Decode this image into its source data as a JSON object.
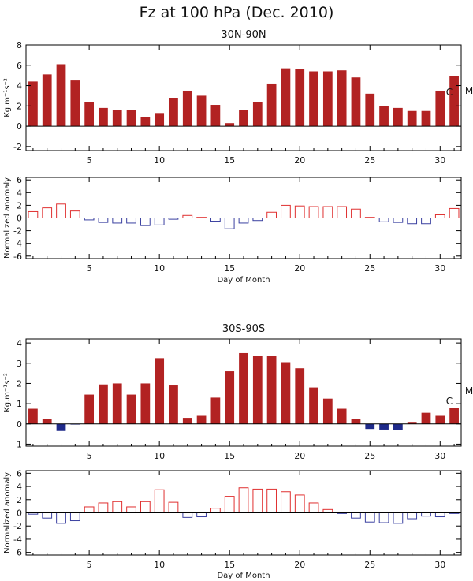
{
  "colors": {
    "positive_fill": "#b22222",
    "negative_fill": "#1f2a8a",
    "anom_positive": "#e03030",
    "anom_negative": "#3a40a0",
    "axis": "#000000"
  },
  "figure": {
    "title": "Fz at 100 hPa (Dec. 2010)",
    "xlabel": "Day of Month"
  },
  "chart_data": [
    {
      "id": "nh_flux",
      "type": "bar",
      "title": "30N-90N",
      "ylabel": "Kg.m⁻¹s⁻²",
      "xlabel": "",
      "xlim": [
        0.5,
        31.5
      ],
      "ylim": [
        -2.4,
        8
      ],
      "xticks": [
        5,
        10,
        15,
        20,
        25,
        30
      ],
      "yticks": [
        -2,
        0,
        2,
        4,
        6,
        8
      ],
      "x": [
        1,
        2,
        3,
        4,
        5,
        6,
        7,
        8,
        9,
        10,
        11,
        12,
        13,
        14,
        15,
        16,
        17,
        18,
        19,
        20,
        21,
        22,
        23,
        24,
        25,
        26,
        27,
        28,
        29,
        30,
        31
      ],
      "values": [
        4.4,
        5.1,
        6.1,
        4.5,
        2.4,
        1.8,
        1.6,
        1.6,
        0.9,
        1.3,
        2.8,
        3.5,
        3.0,
        2.1,
        0.3,
        1.6,
        2.4,
        4.2,
        5.7,
        5.6,
        5.4,
        5.4,
        5.5,
        4.8,
        3.2,
        2.0,
        1.8,
        1.5,
        1.5,
        3.5,
        4.9
      ],
      "annotations": [
        "C",
        "M"
      ]
    },
    {
      "id": "nh_anomaly",
      "type": "bar",
      "title": "",
      "ylabel": "Normalized anomaly",
      "xlabel": "Day of Month",
      "xlim": [
        0.5,
        31.5
      ],
      "ylim": [
        -6.4,
        6.4
      ],
      "xticks": [
        5,
        10,
        15,
        20,
        25,
        30
      ],
      "yticks": [
        -6,
        -4,
        -2,
        0,
        2,
        4,
        6
      ],
      "x": [
        1,
        2,
        3,
        4,
        5,
        6,
        7,
        8,
        9,
        10,
        11,
        12,
        13,
        14,
        15,
        16,
        17,
        18,
        19,
        20,
        21,
        22,
        23,
        24,
        25,
        26,
        27,
        28,
        29,
        30,
        31
      ],
      "values": [
        1.0,
        1.6,
        2.2,
        1.1,
        -0.3,
        -0.7,
        -0.8,
        -0.8,
        -1.2,
        -1.1,
        -0.2,
        0.4,
        0.1,
        -0.5,
        -1.7,
        -0.8,
        -0.4,
        0.9,
        2.0,
        1.9,
        1.8,
        1.8,
        1.8,
        1.4,
        0.1,
        -0.6,
        -0.7,
        -0.9,
        -0.9,
        0.5,
        1.5
      ]
    },
    {
      "id": "sh_flux",
      "type": "bar",
      "title": "30S-90S",
      "ylabel": "Kg.m⁻¹s⁻²",
      "xlabel": "",
      "xlim": [
        0.5,
        31.5
      ],
      "ylim": [
        -1.1,
        4.2
      ],
      "xticks": [
        5,
        10,
        15,
        20,
        25,
        30
      ],
      "yticks": [
        -1,
        0,
        1,
        2,
        3,
        4
      ],
      "x": [
        1,
        2,
        3,
        4,
        5,
        6,
        7,
        8,
        9,
        10,
        11,
        12,
        13,
        14,
        15,
        16,
        17,
        18,
        19,
        20,
        21,
        22,
        23,
        24,
        25,
        26,
        27,
        28,
        29,
        30,
        31
      ],
      "values": [
        0.75,
        0.25,
        -0.35,
        -0.03,
        1.45,
        1.95,
        2.0,
        1.45,
        2.0,
        3.25,
        1.9,
        0.3,
        0.4,
        1.3,
        2.6,
        3.5,
        3.35,
        3.35,
        3.05,
        2.75,
        1.8,
        1.25,
        0.75,
        0.25,
        -0.25,
        -0.28,
        -0.3,
        0.1,
        0.55,
        0.4,
        0.8
      ],
      "annotations": [
        "C",
        "M"
      ]
    },
    {
      "id": "sh_anomaly",
      "type": "bar",
      "title": "",
      "ylabel": "Normalized anomaly",
      "xlabel": "Day of Month",
      "xlim": [
        0.5,
        31.5
      ],
      "ylim": [
        -6.4,
        6.4
      ],
      "xticks": [
        5,
        10,
        15,
        20,
        25,
        30
      ],
      "yticks": [
        -6,
        -4,
        -2,
        0,
        2,
        4,
        6
      ],
      "x": [
        1,
        2,
        3,
        4,
        5,
        6,
        7,
        8,
        9,
        10,
        11,
        12,
        13,
        14,
        15,
        16,
        17,
        18,
        19,
        20,
        21,
        22,
        23,
        24,
        25,
        26,
        27,
        28,
        29,
        30,
        31
      ],
      "values": [
        -0.2,
        -0.8,
        -1.6,
        -1.2,
        0.9,
        1.5,
        1.7,
        0.9,
        1.7,
        3.5,
        1.6,
        -0.7,
        -0.6,
        0.7,
        2.5,
        3.8,
        3.6,
        3.6,
        3.2,
        2.7,
        1.5,
        0.5,
        -0.1,
        -0.8,
        -1.4,
        -1.5,
        -1.6,
        -0.9,
        -0.5,
        -0.6,
        -0.1
      ]
    }
  ]
}
